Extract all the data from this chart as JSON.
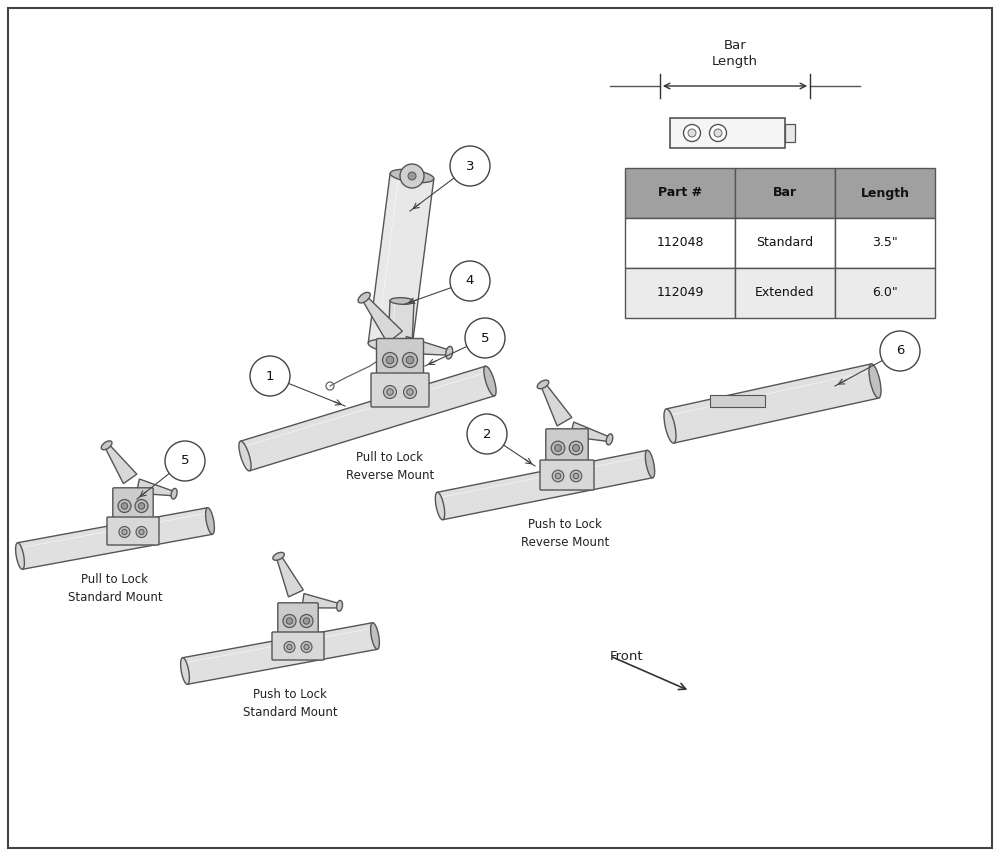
{
  "bg_color": "#ffffff",
  "border_color": "#444444",
  "table_header_color": "#a0a0a0",
  "table_row1_color": "#ffffff",
  "table_row2_color": "#ebebeb",
  "table_headers": [
    "Part #",
    "Bar",
    "Length"
  ],
  "table_rows": [
    [
      "112048",
      "Standard",
      "3.5\""
    ],
    [
      "112049",
      "Extended",
      "6.0\""
    ]
  ],
  "tube_color": "#e8e8e8",
  "tube_edge": "#555555",
  "clamp_color": "#d0d0d0",
  "clamp_dark": "#888888",
  "lever_color": "#e0e0e0",
  "line_color": "#444444"
}
